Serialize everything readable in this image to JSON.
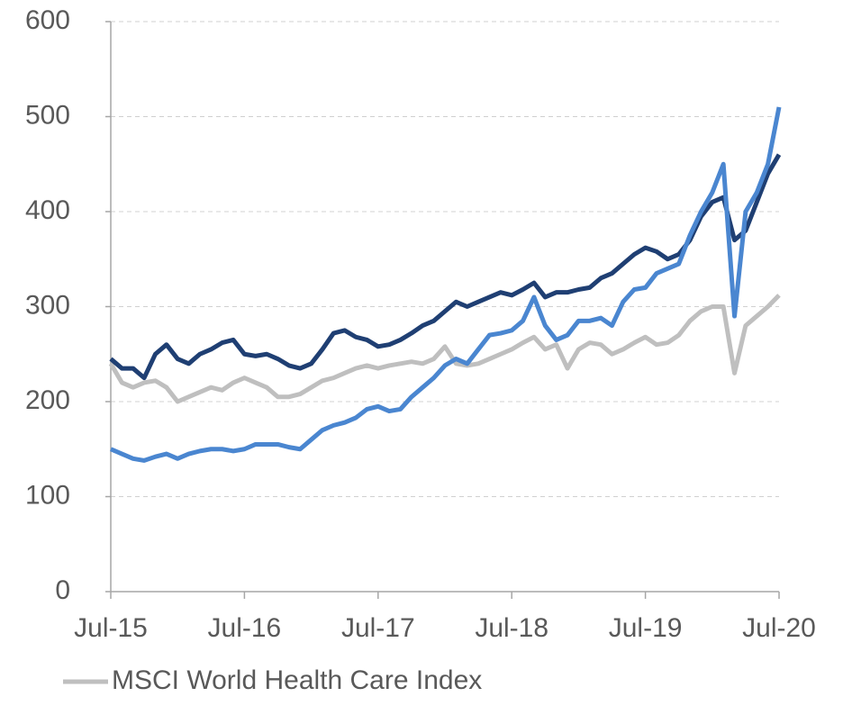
{
  "chart_data": {
    "type": "line",
    "x": [
      "2015-07",
      "2015-08",
      "2015-09",
      "2015-10",
      "2015-11",
      "2015-12",
      "2016-01",
      "2016-02",
      "2016-03",
      "2016-04",
      "2016-05",
      "2016-06",
      "2016-07",
      "2016-08",
      "2016-09",
      "2016-10",
      "2016-11",
      "2016-12",
      "2017-01",
      "2017-02",
      "2017-03",
      "2017-04",
      "2017-05",
      "2017-06",
      "2017-07",
      "2017-08",
      "2017-09",
      "2017-10",
      "2017-11",
      "2017-12",
      "2018-01",
      "2018-02",
      "2018-03",
      "2018-04",
      "2018-05",
      "2018-06",
      "2018-07",
      "2018-08",
      "2018-09",
      "2018-10",
      "2018-11",
      "2018-12",
      "2019-01",
      "2019-02",
      "2019-03",
      "2019-04",
      "2019-05",
      "2019-06",
      "2019-07",
      "2019-08",
      "2019-09",
      "2019-10",
      "2019-11",
      "2019-12",
      "2020-01",
      "2020-02",
      "2020-03",
      "2020-04",
      "2020-05",
      "2020-06",
      "2020-07"
    ],
    "series": [
      {
        "color": "#1f3f73",
        "values": [
          245,
          235,
          235,
          225,
          250,
          260,
          245,
          240,
          250,
          255,
          262,
          265,
          250,
          248,
          250,
          245,
          238,
          235,
          240,
          255,
          272,
          275,
          268,
          265,
          258,
          260,
          265,
          272,
          280,
          285,
          295,
          305,
          300,
          305,
          310,
          315,
          312,
          318,
          325,
          310,
          315,
          315,
          318,
          320,
          330,
          335,
          345,
          355,
          362,
          358,
          350,
          355,
          370,
          395,
          410,
          415,
          370,
          380,
          410,
          440,
          460
        ]
      },
      {
        "color": "#4a86d0",
        "values": [
          150,
          145,
          140,
          138,
          142,
          145,
          140,
          145,
          148,
          150,
          150,
          148,
          150,
          155,
          155,
          155,
          152,
          150,
          160,
          170,
          175,
          178,
          183,
          192,
          195,
          190,
          192,
          205,
          215,
          225,
          238,
          245,
          240,
          255,
          270,
          272,
          275,
          285,
          310,
          280,
          265,
          270,
          285,
          285,
          288,
          280,
          305,
          318,
          320,
          335,
          340,
          345,
          375,
          400,
          420,
          450,
          290,
          400,
          420,
          450,
          510
        ]
      },
      {
        "name": "MSCI World Health Care Index",
        "color": "#bfbfbf",
        "values": [
          240,
          220,
          215,
          220,
          222,
          215,
          200,
          205,
          210,
          215,
          212,
          220,
          225,
          220,
          215,
          205,
          205,
          208,
          215,
          222,
          225,
          230,
          235,
          238,
          235,
          238,
          240,
          242,
          240,
          245,
          258,
          240,
          238,
          240,
          245,
          250,
          255,
          262,
          268,
          255,
          260,
          235,
          255,
          262,
          260,
          250,
          255,
          262,
          268,
          260,
          262,
          270,
          285,
          295,
          300,
          300,
          230,
          280,
          290,
          300,
          312
        ]
      }
    ],
    "xlim": [
      "2015-07",
      "2020-07"
    ],
    "xticks": [
      {
        "value": "2015-07",
        "label": "Jul-15"
      },
      {
        "value": "2016-07",
        "label": "Jul-16"
      },
      {
        "value": "2017-07",
        "label": "Jul-17"
      },
      {
        "value": "2018-07",
        "label": "Jul-18"
      },
      {
        "value": "2019-07",
        "label": "Jul-19"
      },
      {
        "value": "2020-07",
        "label": "Jul-20"
      }
    ],
    "ylim": [
      0,
      600
    ],
    "yticks": [
      0,
      100,
      200,
      300,
      400,
      500,
      600
    ],
    "grid": true
  }
}
